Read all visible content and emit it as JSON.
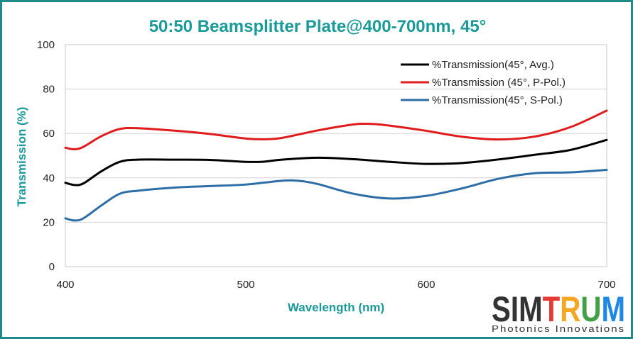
{
  "chart_data": {
    "type": "line",
    "title": "50:50 Beamsplitter Plate@400-700nm, 45°",
    "xlabel": "Wavelength (nm)",
    "ylabel": "Transmission (%)",
    "xlim": [
      400,
      700
    ],
    "ylim": [
      0,
      100
    ],
    "xticks": [
      "400",
      "500",
      "600",
      "700"
    ],
    "yticks": [
      "0",
      "20",
      "40",
      "60",
      "80",
      "100"
    ],
    "grid": "horizontal",
    "legend_position": "top-right",
    "series": [
      {
        "name": "%Transmission(45°, Avg.)",
        "color": "#000000",
        "x": [
          400,
          405,
          410,
          420,
          430,
          440,
          460,
          480,
          500,
          510,
          520,
          540,
          560,
          580,
          600,
          620,
          640,
          660,
          680,
          700
        ],
        "y": [
          37.8,
          36.8,
          37.5,
          43,
          47.2,
          48.2,
          48.2,
          48.1,
          47.2,
          47.3,
          48.2,
          49.1,
          48.4,
          47.2,
          46.3,
          46.7,
          48.3,
          50.4,
          52.6,
          57.1
        ]
      },
      {
        "name": "%Transmission (45°, P-Pol.)",
        "color": "#e01b1b",
        "x": [
          400,
          405,
          410,
          420,
          430,
          440,
          460,
          480,
          500,
          510,
          520,
          540,
          560,
          570,
          580,
          600,
          620,
          640,
          660,
          680,
          700
        ],
        "y": [
          53.6,
          52.9,
          54,
          58.8,
          62,
          62.4,
          61.3,
          59.8,
          57.7,
          57.4,
          58,
          61.4,
          64.1,
          64.3,
          63.5,
          61.2,
          58.5,
          57.3,
          58.6,
          62.9,
          70.3
        ]
      },
      {
        "name": "%Transmission(45°, S-Pol.)",
        "color": "#2e6ea6",
        "x": [
          400,
          405,
          410,
          420,
          430,
          440,
          460,
          480,
          500,
          520,
          530,
          540,
          560,
          580,
          600,
          620,
          640,
          660,
          680,
          700
        ],
        "y": [
          21.8,
          20.8,
          21.8,
          27.6,
          32.8,
          34.2,
          35.6,
          36.3,
          37,
          38.7,
          38.6,
          37.2,
          32.8,
          30.7,
          31.9,
          35.3,
          39.6,
          42.1,
          42.5,
          43.6
        ]
      }
    ]
  },
  "logo": {
    "letters": [
      {
        "ch": "S",
        "color": "#333333"
      },
      {
        "ch": "I",
        "color": "#333333"
      },
      {
        "ch": "M",
        "color": "#333333"
      },
      {
        "ch": "T",
        "color": "#e53935"
      },
      {
        "ch": "R",
        "color": "#f5a623"
      },
      {
        "ch": "U",
        "color": "#43a047"
      },
      {
        "ch": "M",
        "color": "#1e88e5"
      }
    ],
    "tagline": "Photonics Innovations"
  }
}
